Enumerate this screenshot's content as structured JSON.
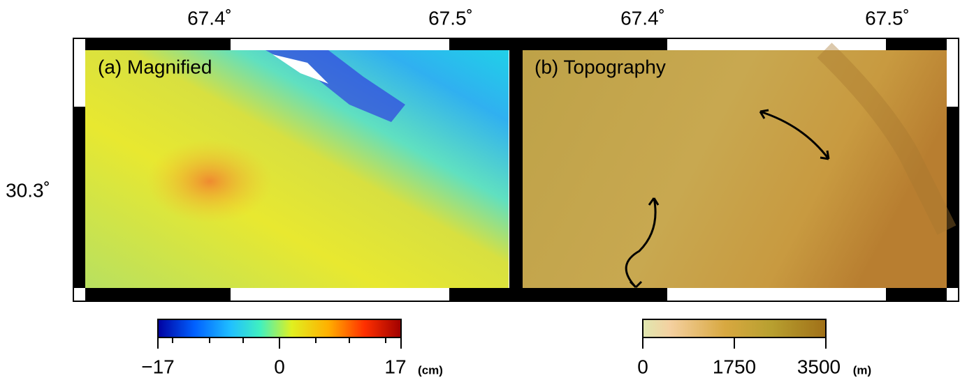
{
  "panels": [
    {
      "label": "(a) Magnified",
      "lon_ticks": [
        "67.4˚",
        "67.5˚"
      ],
      "lat_tick": "30.3˚",
      "colorbar": {
        "ticks": [
          "−17",
          "0",
          "17"
        ],
        "unit": "(cm)"
      }
    },
    {
      "label": "(b) Topography",
      "lon_ticks": [
        "67.4˚",
        "67.5˚"
      ],
      "colorbar": {
        "ticks": [
          "0",
          "1750",
          "3500"
        ],
        "unit": "(m)"
      }
    }
  ]
}
